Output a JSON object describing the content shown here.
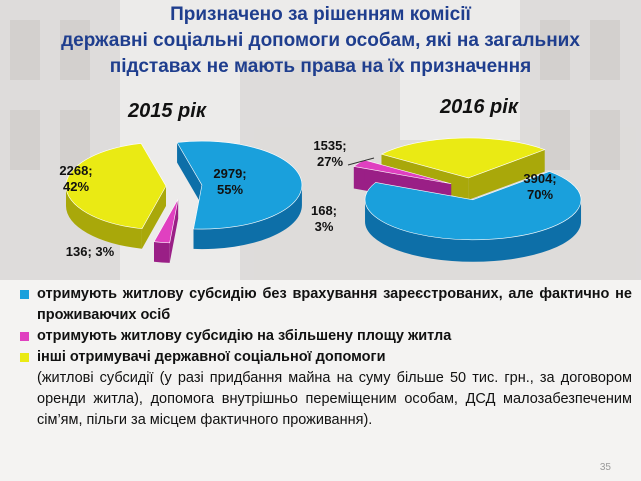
{
  "title_lines": [
    "Призначено за рішенням комісії",
    "державні соціальні допомоги особам, які на загальних",
    "підставах не мають права на їх призначення"
  ],
  "colors": {
    "blue": "#1aa0dc",
    "magenta": "#e040c0",
    "yellow": "#eaea14",
    "title": "#1f3e8e"
  },
  "chart_data": [
    {
      "type": "pie",
      "title": "2015 рік",
      "categories": [
        "отримують житлову субсидію без врахування зареєстрованих, але фактично не проживаючих осіб",
        "отримують житлову субсидію на збільшену площу житла",
        "інші отримувачі державної соціальної допомоги"
      ],
      "values": [
        2979,
        136,
        2268
      ],
      "percents": [
        55,
        3,
        42
      ],
      "labels": [
        "2979;\n55%",
        "136; 3%",
        "2268;\n42%"
      ],
      "legend": "bottom"
    },
    {
      "type": "pie",
      "title": "2016 рік",
      "categories": [
        "отримують житлову субсидію без врахування зареєстрованих, але фактично не проживаючих осіб",
        "отримують житлову субсидію на збільшену площу житла",
        "інші отримувачі державної соціальної допомоги"
      ],
      "values": [
        3904,
        168,
        1535
      ],
      "percents": [
        70,
        3,
        27
      ],
      "labels": [
        "3904;\n70%",
        "168;\n3%",
        "1535;\n27%"
      ],
      "legend": "bottom"
    }
  ],
  "legend": [
    {
      "text": "отримують житлову субсидію без врахування зареєстрованих, але фактично не проживаючих осіб",
      "color": "blue"
    },
    {
      "text": "отримують житлову субсидію на збільшену площу житла",
      "color": "magenta"
    },
    {
      "text": "інші отримувачі державної соціальної допомоги",
      "color": "yellow"
    }
  ],
  "note": "(житлові субсидії (у разі придбання майна на суму більше 50 тис. грн., за договором оренди житла), допомога внутрішньо переміщеним особам, ДСД малозабезпеченим сім’ям, пільги за місцем фактичного проживання).",
  "page_number": "35"
}
